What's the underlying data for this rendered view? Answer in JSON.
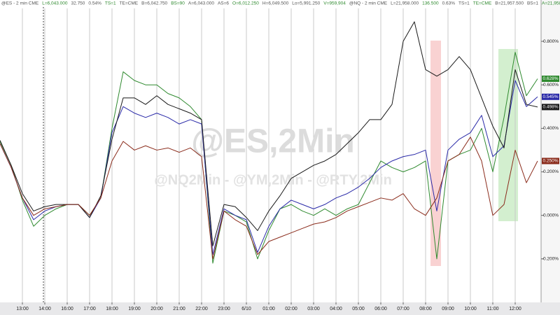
{
  "chart_data": {
    "type": "line",
    "header_texts": [
      "@ES - 2 min CME",
      "L=6,043.000",
      "32.750",
      "0.54%",
      "TS=1",
      "TE=CME",
      "B=6,042.750",
      "BS=90",
      "A=6,043.000",
      "AS=6",
      "O=6,012.250",
      "H=6,049.500",
      "Lo=5,991.250",
      "V=959,904",
      "@NQ - 2 min CME",
      "L=21,958.000",
      "136.500",
      "0.63%",
      "TS=1",
      "TE=CME",
      "B=21,957.500",
      "BS=1",
      "A=21,958.000",
      "AS=5",
      "O=21,824"
    ],
    "watermarks": [
      "@ES,2Min",
      "@NQ2Min - @YM,2Min - @RTY,2Min"
    ],
    "categories": [
      null,
      null,
      "13:00",
      null,
      "14:00",
      null,
      "16:00",
      null,
      "17:00",
      null,
      "18:00",
      null,
      "19:00",
      null,
      "20:00",
      null,
      "21:00",
      null,
      "22:00",
      null,
      "23:00",
      null,
      "6/10",
      null,
      "01:00",
      null,
      "02:00",
      null,
      "03:00",
      null,
      "04:00",
      null,
      "05:00",
      null,
      "06:00",
      null,
      "07:00",
      null,
      "08:00",
      null,
      "09:00",
      null,
      "10:00",
      null,
      "11:00",
      null,
      "12:00",
      null,
      null
    ],
    "ylim": [
      -0.4,
      0.99
    ],
    "yticks": [
      {
        "value": 0.8,
        "label": "0.800%"
      },
      {
        "value": 0.6,
        "label": "0.600%"
      },
      {
        "value": 0.4,
        "label": "0.400%"
      },
      {
        "value": 0.2,
        "label": "0.200%"
      },
      {
        "value": 0,
        "label": "0.000%"
      },
      {
        "value": -0.2,
        "label": "-0.200%"
      }
    ],
    "series": [
      {
        "name": "ES",
        "color": "#2f8a2f",
        "last_label": "0.628%",
        "values": [
          0.34,
          0.23,
          0.07,
          -0.05,
          0.0,
          0.03,
          0.05,
          0.05,
          0.0,
          0.08,
          0.4,
          0.66,
          0.62,
          0.6,
          0.6,
          0.56,
          0.54,
          0.5,
          0.44,
          -0.22,
          0.02,
          0.0,
          -0.03,
          -0.2,
          -0.07,
          0.03,
          0.05,
          0.02,
          0.0,
          0.03,
          0.0,
          0.03,
          0.05,
          0.15,
          0.25,
          0.22,
          0.2,
          0.22,
          0.25,
          -0.2,
          0.25,
          0.28,
          0.3,
          0.4,
          0.2,
          0.45,
          0.75,
          0.55,
          0.628
        ]
      },
      {
        "name": "YM",
        "color": "#2a2aa8",
        "last_label": "0.545%",
        "values": [
          0.33,
          0.22,
          0.08,
          -0.02,
          0.02,
          0.04,
          0.05,
          0.05,
          -0.01,
          0.08,
          0.38,
          0.5,
          0.47,
          0.45,
          0.47,
          0.45,
          0.42,
          0.44,
          0.42,
          -0.18,
          0.03,
          0.0,
          -0.02,
          -0.17,
          -0.05,
          0.03,
          0.07,
          0.05,
          0.03,
          0.05,
          0.08,
          0.1,
          0.13,
          0.17,
          0.22,
          0.25,
          0.27,
          0.28,
          0.3,
          0.02,
          0.3,
          0.35,
          0.38,
          0.46,
          0.27,
          0.32,
          0.62,
          0.5,
          0.545
        ]
      },
      {
        "name": "NQ",
        "color": "#1a1a1a",
        "last_label": "0.498%",
        "values": [
          0.345,
          0.23,
          0.1,
          0.02,
          0.04,
          0.05,
          0.05,
          0.05,
          -0.01,
          0.09,
          0.35,
          0.54,
          0.54,
          0.51,
          0.55,
          0.51,
          0.49,
          0.47,
          0.44,
          -0.14,
          0.05,
          0.04,
          -0.01,
          -0.07,
          0.02,
          0.09,
          0.17,
          0.2,
          0.23,
          0.25,
          0.28,
          0.33,
          0.38,
          0.44,
          0.44,
          0.51,
          0.8,
          0.89,
          0.67,
          0.64,
          0.67,
          0.73,
          0.67,
          0.54,
          0.41,
          0.31,
          0.67,
          0.51,
          0.498
        ]
      },
      {
        "name": "RTY",
        "color": "#8b2c1c",
        "last_label": "0.250%",
        "values": [
          0.33,
          0.22,
          0.08,
          0.0,
          0.03,
          0.04,
          0.05,
          0.05,
          0.0,
          0.08,
          0.25,
          0.34,
          0.3,
          0.32,
          0.3,
          0.31,
          0.29,
          0.31,
          0.27,
          -0.2,
          0.02,
          -0.02,
          -0.05,
          -0.18,
          -0.12,
          -0.1,
          -0.08,
          -0.06,
          -0.04,
          -0.03,
          -0.01,
          0.02,
          0.04,
          0.06,
          0.08,
          0.07,
          0.1,
          0.03,
          0.0,
          0.08,
          0.25,
          0.28,
          0.36,
          0.25,
          0.0,
          0.05,
          0.3,
          0.15,
          0.25
        ]
      }
    ]
  }
}
